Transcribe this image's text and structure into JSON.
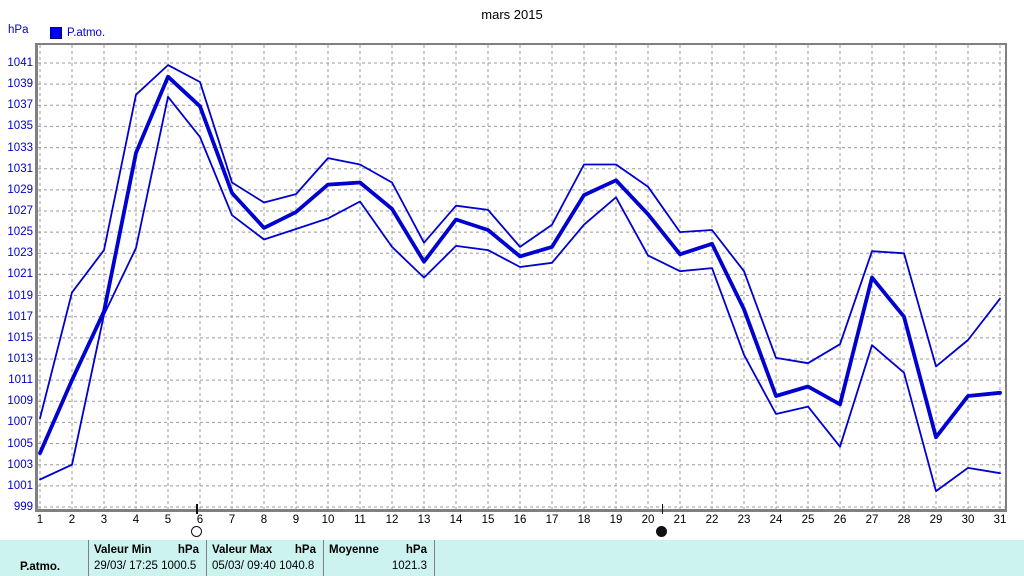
{
  "title": "mars 2015",
  "y_axis_unit": "hPa",
  "legend": {
    "label": "P.atmo.",
    "swatch_color": "#0000f0"
  },
  "colors": {
    "line": "#0000d0",
    "axis_label": "#0000cc",
    "grid": "#9b9b9b",
    "border": "#808080",
    "table_bg": "#ccf3ef",
    "table_separator": "#7f7f7f"
  },
  "chart_data": {
    "type": "line",
    "title": "mars 2015",
    "ylabel": "hPa",
    "ylim": [
      999,
      1041
    ],
    "y_tick_step": 2,
    "y_tick_labels": [
      "999",
      "1001",
      "1003",
      "1005",
      "1007",
      "1009",
      "1011",
      "1013",
      "1015",
      "1017",
      "1019",
      "1021",
      "1023",
      "1025",
      "1027",
      "1029",
      "1031",
      "1033",
      "1035",
      "1037",
      "1039",
      "1041"
    ],
    "x": [
      1,
      2,
      3,
      4,
      5,
      6,
      7,
      8,
      9,
      10,
      11,
      12,
      13,
      14,
      15,
      16,
      17,
      18,
      19,
      20,
      21,
      22,
      23,
      24,
      25,
      26,
      27,
      28,
      29,
      30,
      31
    ],
    "x_tick_labels": [
      "1",
      "2",
      "3",
      "4",
      "5",
      "6",
      "7",
      "8",
      "9",
      "10",
      "11",
      "12",
      "13",
      "14",
      "15",
      "16",
      "17",
      "18",
      "19",
      "20",
      "21",
      "22",
      "23",
      "24",
      "25",
      "26",
      "27",
      "28",
      "29",
      "30",
      "31"
    ],
    "grid": true,
    "legend_entries": [
      "P.atmo."
    ],
    "series": [
      {
        "name": "P.atmo. maximum journalier",
        "style": "thin",
        "values": [
          1007.4,
          1019.3,
          1023.3,
          1038.0,
          1040.8,
          1039.2,
          1029.7,
          1027.8,
          1028.6,
          1032.0,
          1031.4,
          1029.7,
          1024.0,
          1027.5,
          1027.1,
          1023.6,
          1025.7,
          1031.4,
          1031.4,
          1029.3,
          1025.0,
          1025.2,
          1021.3,
          1013.1,
          1012.6,
          1014.4,
          1023.2,
          1023.0,
          1012.3,
          1014.8,
          1018.7
        ]
      },
      {
        "name": "P.atmo. moyenne journaliere",
        "style": "thick",
        "values": [
          1004.1,
          1011.0,
          1017.5,
          1032.5,
          1039.7,
          1036.9,
          1028.7,
          1025.4,
          1026.9,
          1029.5,
          1029.7,
          1027.2,
          1022.2,
          1026.2,
          1025.2,
          1022.7,
          1023.6,
          1028.5,
          1029.9,
          1026.7,
          1022.9,
          1023.9,
          1017.7,
          1009.5,
          1010.4,
          1008.7,
          1020.7,
          1017.0,
          1005.6,
          1009.5,
          1009.8
        ]
      },
      {
        "name": "P.atmo. minimum journalier",
        "style": "thin",
        "values": [
          1001.6,
          1003.0,
          1017.2,
          1023.5,
          1037.8,
          1034.0,
          1026.6,
          1024.3,
          1025.3,
          1026.3,
          1027.9,
          1023.6,
          1020.7,
          1023.7,
          1023.3,
          1021.7,
          1022.1,
          1025.7,
          1028.3,
          1022.8,
          1021.3,
          1021.6,
          1013.4,
          1007.8,
          1008.5,
          1004.7,
          1014.3,
          1011.7,
          1000.5,
          1002.7,
          1002.2
        ]
      }
    ],
    "moon_markers": [
      {
        "name": "full-moon-marker",
        "x_day": 5.9,
        "filled": false
      },
      {
        "name": "new-moon-marker",
        "x_day": 20.45,
        "filled": true
      }
    ]
  },
  "summary_table": {
    "row_label": "P.atmo.",
    "columns": [
      {
        "header_left": "Valeur Min",
        "header_right": "hPa",
        "value": "29/03/ 17:25 1000.5",
        "value_align": "left"
      },
      {
        "header_left": "Valeur Max",
        "header_right": "hPa",
        "value": "05/03/ 09:40 1040.8",
        "value_align": "left"
      },
      {
        "header_left": "Moyenne",
        "header_right": "hPa",
        "value": "1021.3",
        "value_align": "right"
      }
    ]
  }
}
